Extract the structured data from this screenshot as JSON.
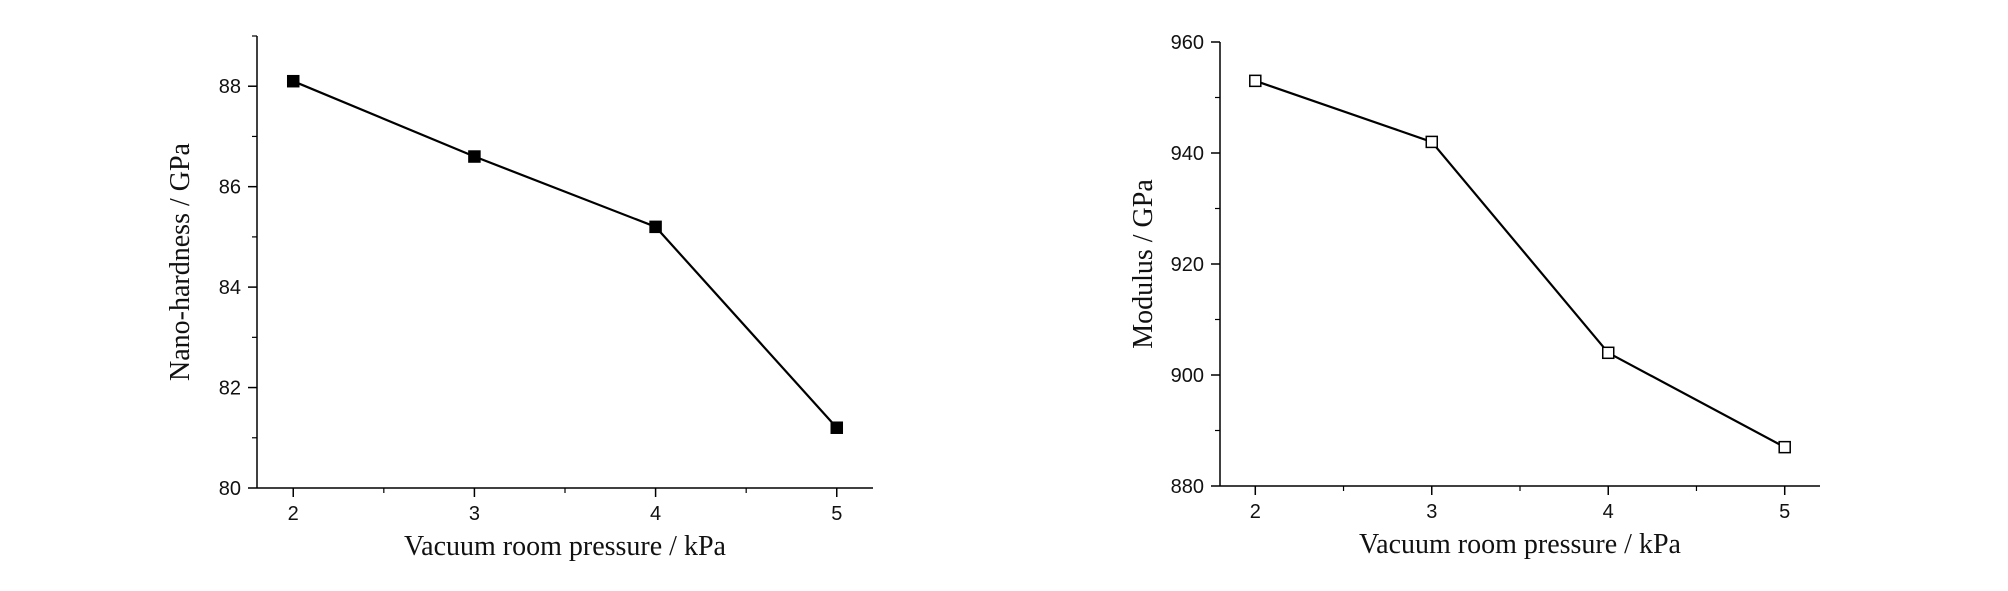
{
  "chart_data": [
    {
      "type": "line",
      "x_label": "Vacuum room pressure / kPa",
      "y_label": "Nano-hardness / GPa",
      "x": [
        2,
        3,
        4,
        5
      ],
      "series": [
        {
          "values": [
            88.1,
            86.6,
            85.2,
            81.2
          ],
          "color": "#000000",
          "marker": "filled-square"
        }
      ],
      "xlim": [
        1.8,
        5.2
      ],
      "xticks": [
        2,
        3,
        4,
        5
      ],
      "minor_xticks": [
        2.5,
        3.5,
        4.5
      ],
      "ylim": [
        80,
        89
      ],
      "yticks": [
        80,
        82,
        84,
        86,
        88
      ],
      "minor_yticks": [
        81,
        83,
        85,
        87,
        89
      ]
    },
    {
      "type": "line",
      "x_label": "Vacuum room pressure / kPa",
      "y_label": "Modulus / GPa",
      "x": [
        2,
        3,
        4,
        5
      ],
      "series": [
        {
          "values": [
            953,
            942,
            904,
            887
          ],
          "color": "#000000",
          "marker": "open-square"
        }
      ],
      "xlim": [
        1.8,
        5.2
      ],
      "xticks": [
        2,
        3,
        4,
        5
      ],
      "minor_xticks": [
        2.5,
        3.5,
        4.5
      ],
      "ylim": [
        880,
        960
      ],
      "yticks": [
        880,
        900,
        920,
        940,
        960
      ],
      "minor_yticks": [
        890,
        910,
        930,
        950
      ]
    }
  ]
}
